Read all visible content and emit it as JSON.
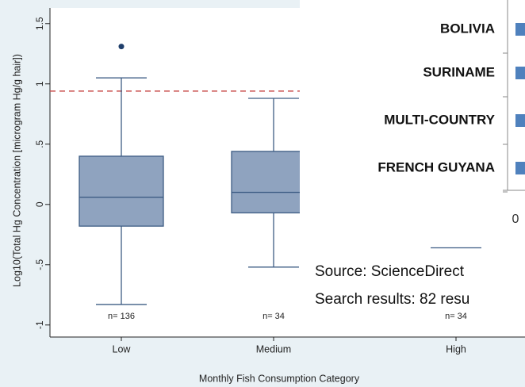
{
  "chart_data": {
    "type": "box",
    "y_label": "Log10(Total Hg Concentration [microgram Hg/g hair])",
    "x_label": "Monthly Fish Consumption Category",
    "categories": [
      "Low",
      "Medium",
      "High"
    ],
    "whisker_high": [
      1.05,
      0.88,
      null
    ],
    "q3": [
      0.4,
      0.44,
      null
    ],
    "median": [
      0.06,
      0.1,
      null
    ],
    "q1": [
      -0.18,
      -0.07,
      null
    ],
    "whisker_low": [
      -0.83,
      -0.52,
      -0.36
    ],
    "outliers": [
      [
        1.31
      ],
      [],
      []
    ],
    "annotations": [
      "n= 136",
      "n= 34",
      "n= 34"
    ],
    "reference_line": {
      "value": 0.94,
      "color": "#c9504f",
      "dashed": true
    },
    "color": "#8fa3bf",
    "edge_color": "#3e5d84",
    "ylim": [
      -1.1,
      1.63
    ],
    "yticks": [
      -1,
      {
        "value": -0.5,
        "label": "-.5"
      },
      0,
      {
        "value": 0.5,
        "label": ".5"
      },
      1,
      1.5
    ]
  },
  "overlay": {
    "countries": [
      "BOLIVIA",
      "SURINAME",
      "MULTI-COUNTRY",
      "FRENCH GUYANA"
    ],
    "axis_label": "0",
    "source": "Source: ScienceDirect",
    "search": "Search results: 82 resu"
  }
}
